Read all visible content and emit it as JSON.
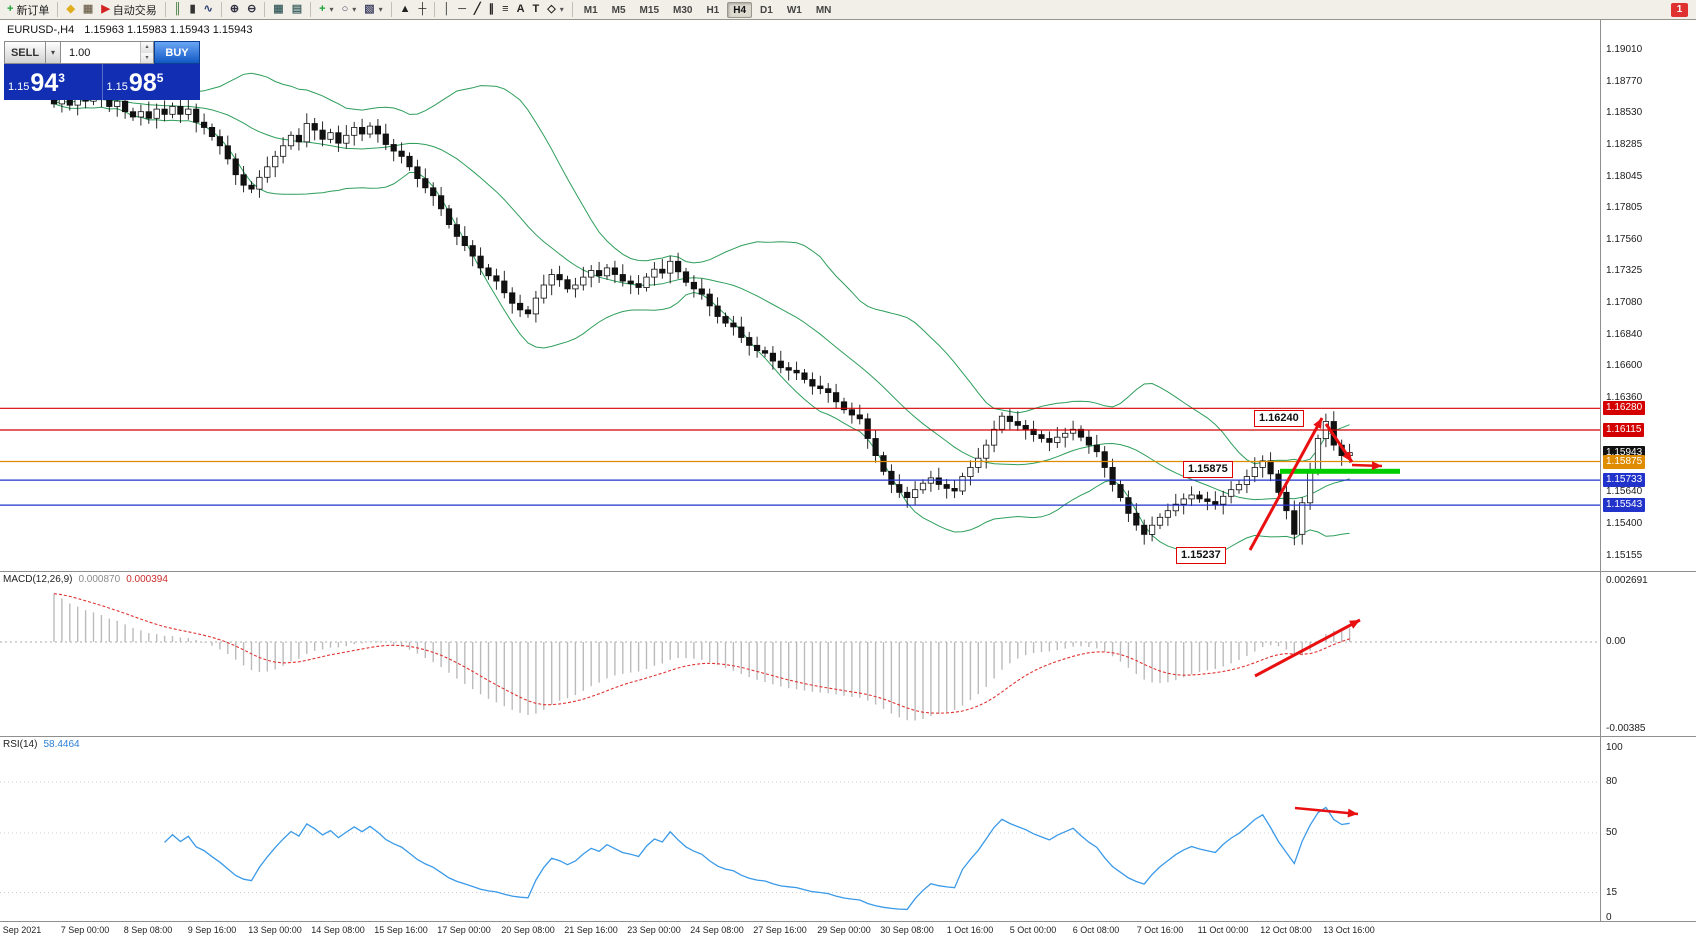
{
  "toolbar": {
    "groups": [
      {
        "items": [
          {
            "name": "new-order",
            "icon": "+",
            "color": "#18a035",
            "label": "新订单"
          }
        ]
      },
      {
        "items": [
          {
            "name": "deposit",
            "icon": "◆",
            "color": "#dfae1f"
          },
          {
            "name": "profiles",
            "icon": "▦",
            "color": "#7a6f5a"
          },
          {
            "name": "autotrading",
            "icon": "▶",
            "color": "#d22222",
            "label": "自动交易"
          }
        ]
      },
      {
        "items": [
          {
            "name": "bar-chart",
            "icon": "║",
            "color": "#2f6e2f"
          },
          {
            "name": "candlestick-chart",
            "icon": "▮",
            "color": "#333333"
          },
          {
            "name": "line-chart",
            "icon": "∿",
            "color": "#334477"
          }
        ]
      },
      {
        "items": [
          {
            "name": "zoom-in",
            "icon": "⊕",
            "color": "#333344"
          },
          {
            "name": "zoom-out",
            "icon": "⊖",
            "color": "#333344"
          }
        ]
      },
      {
        "items": [
          {
            "name": "tile-windows",
            "icon": "▦",
            "color": "#446666"
          },
          {
            "name": "auto-arrange",
            "icon": "▤",
            "color": "#446666"
          }
        ]
      },
      {
        "items": [
          {
            "name": "add-indicator",
            "icon": "+",
            "color": "#18a035",
            "dropdown": true
          },
          {
            "name": "period-menu",
            "icon": "○",
            "color": "#444466",
            "dropdown": true
          },
          {
            "name": "template-menu",
            "icon": "▧",
            "color": "#444466",
            "dropdown": true
          }
        ]
      },
      {
        "items": [
          {
            "name": "cursor-tool",
            "icon": "▲",
            "color": "#222222"
          },
          {
            "name": "crosshair-tool",
            "icon": "┼",
            "color": "#222222"
          }
        ]
      },
      {
        "items": [
          {
            "name": "vertical-line-tool",
            "icon": "│",
            "color": "#222222"
          },
          {
            "name": "horizontal-line-tool",
            "icon": "─",
            "color": "#222222"
          },
          {
            "name": "trendline-tool",
            "icon": "╱",
            "color": "#222222"
          },
          {
            "name": "channel-tool",
            "icon": "∥",
            "color": "#222222"
          },
          {
            "name": "fibonacci-tool",
            "icon": "≡",
            "color": "#222222"
          },
          {
            "name": "text-tool",
            "icon": "A",
            "color": "#222222"
          },
          {
            "name": "label-tool",
            "icon": "T",
            "color": "#222222"
          },
          {
            "name": "shapes-tool",
            "icon": "◇",
            "color": "#222222",
            "dropdown": true
          }
        ]
      }
    ],
    "timeframes": [
      "M1",
      "M5",
      "M15",
      "M30",
      "H1",
      "H4",
      "D1",
      "W1",
      "MN"
    ],
    "active_timeframe": "H4",
    "notification_badge": "1"
  },
  "chart": {
    "symbol_period": "EURUSD-,H4",
    "ohlc": "1.15963 1.15983 1.15943 1.15943"
  },
  "trade_panel": {
    "sell_label": "SELL",
    "buy_label": "BUY",
    "volume": "1.00",
    "sell_price": {
      "prefix": "1.15",
      "big": "94",
      "sup": "3"
    },
    "buy_price": {
      "prefix": "1.15",
      "big": "98",
      "sup": "5"
    }
  },
  "annotations": {
    "high": "1.16240",
    "mid": "1.15875",
    "low": "1.15237"
  },
  "price_axis": {
    "gridline_labels": [
      "1.19010",
      "1.18770",
      "1.18530",
      "1.18285",
      "1.18045",
      "1.17805",
      "1.17560",
      "1.17325",
      "1.17080",
      "1.16840",
      "1.16600",
      "1.16360",
      "1.16115",
      "1.15875",
      "1.15640",
      "1.15400",
      "1.15155"
    ],
    "highlighted": [
      {
        "value": "1.16280",
        "bg": "#d40000"
      },
      {
        "value": "1.16115",
        "bg": "#d40000"
      },
      {
        "value": "1.15943",
        "bg": "#111111"
      },
      {
        "value": "1.15875",
        "bg": "#e08c00"
      },
      {
        "value": "1.15733",
        "bg": "#2233cc"
      },
      {
        "value": "1.15543",
        "bg": "#2233cc"
      }
    ]
  },
  "macd": {
    "name": "MACD(12,26,9)",
    "value_main": "0.000870",
    "value_signal": "0.000394",
    "axis_labels": [
      "0.002691",
      "0.00",
      "-0.00385"
    ],
    "axis_values": [
      0.002691,
      0,
      -0.00385
    ]
  },
  "rsi": {
    "name": "RSI(14)",
    "value": "58.4464",
    "axis_labels": [
      "100",
      "80",
      "50",
      "15",
      "0"
    ],
    "axis_values": [
      100,
      80,
      50,
      15,
      0
    ],
    "levels": [
      80,
      50,
      15
    ]
  },
  "time_axis": [
    "Sep 2021",
    "7 Sep 00:00",
    "8 Sep 08:00",
    "9 Sep 16:00",
    "13 Sep 00:00",
    "14 Sep 08:00",
    "15 Sep 16:00",
    "17 Sep 00:00",
    "20 Sep 08:00",
    "21 Sep 16:00",
    "23 Sep 00:00",
    "24 Sep 08:00",
    "27 Sep 16:00",
    "29 Sep 00:00",
    "30 Sep 08:00",
    "1 Oct 16:00",
    "5 Oct 00:00",
    "6 Oct 08:00",
    "7 Oct 16:00",
    "11 Oct 00:00",
    "12 Oct 08:00",
    "13 Oct 16:00"
  ],
  "colors": {
    "bollinger": "#2e9e5b",
    "bull": "#ffffff",
    "bear": "#111111",
    "macd_hist": "#bbbbbb",
    "macd_signal": "#e03333",
    "rsi_line": "#3b9ae8",
    "arrow": "#e81010",
    "support_zone": "#00ce00"
  },
  "chart_data": {
    "type": "candlestick",
    "symbol": "EURUSD-",
    "timeframe": "H4",
    "ylim": [
      1.15155,
      1.1901
    ],
    "hlines": [
      {
        "price": 1.1628,
        "color": "#d40000"
      },
      {
        "price": 1.16115,
        "color": "#d40000"
      },
      {
        "price": 1.15875,
        "color": "#e08c00"
      },
      {
        "price": 1.15733,
        "color": "#2233cc"
      },
      {
        "price": 1.15543,
        "color": "#2233cc"
      }
    ],
    "support_zone_price": 1.158,
    "key_points": {
      "swing_low_index": 157,
      "swing_low": 1.15237,
      "swing_high_index": 161,
      "swing_high": 1.1624,
      "current_bid": 1.15943,
      "current_ask": 1.15985
    },
    "bollinger": {
      "period": 20,
      "deviation": 2
    },
    "closes": [
      1.186,
      1.1864,
      1.1859,
      1.1866,
      1.1862,
      1.1868,
      1.1864,
      1.1858,
      1.1862,
      1.1854,
      1.185,
      1.1854,
      1.1849,
      1.1856,
      1.1852,
      1.1858,
      1.1852,
      1.1856,
      1.1846,
      1.1842,
      1.1835,
      1.1828,
      1.1818,
      1.1806,
      1.1798,
      1.1795,
      1.1804,
      1.1812,
      1.182,
      1.1828,
      1.1836,
      1.1831,
      1.1845,
      1.184,
      1.1833,
      1.1838,
      1.183,
      1.1836,
      1.1842,
      1.1837,
      1.1843,
      1.1837,
      1.1829,
      1.1824,
      1.182,
      1.1812,
      1.1803,
      1.1796,
      1.179,
      1.178,
      1.1768,
      1.1759,
      1.1752,
      1.1744,
      1.1735,
      1.1729,
      1.1725,
      1.1716,
      1.1708,
      1.1703,
      1.17,
      1.1712,
      1.1722,
      1.173,
      1.1726,
      1.1719,
      1.1722,
      1.1728,
      1.1733,
      1.1729,
      1.1735,
      1.173,
      1.1725,
      1.1723,
      1.172,
      1.1728,
      1.1734,
      1.1731,
      1.174,
      1.1732,
      1.1724,
      1.1719,
      1.1715,
      1.1706,
      1.1698,
      1.1693,
      1.169,
      1.1682,
      1.1676,
      1.1672,
      1.167,
      1.1664,
      1.1659,
      1.1657,
      1.1655,
      1.165,
      1.1645,
      1.1643,
      1.164,
      1.1633,
      1.1627,
      1.1623,
      1.162,
      1.1605,
      1.1592,
      1.158,
      1.157,
      1.1564,
      1.156,
      1.1566,
      1.1571,
      1.1575,
      1.157,
      1.1567,
      1.1565,
      1.1576,
      1.1583,
      1.159,
      1.16,
      1.1612,
      1.1622,
      1.1618,
      1.1615,
      1.1612,
      1.1608,
      1.1605,
      1.1602,
      1.1606,
      1.1609,
      1.1612,
      1.1606,
      1.16,
      1.1595,
      1.1583,
      1.157,
      1.156,
      1.1548,
      1.1539,
      1.1532,
      1.1539,
      1.1545,
      1.155,
      1.1555,
      1.1559,
      1.1562,
      1.1559,
      1.1557,
      1.1555,
      1.1561,
      1.1566,
      1.157,
      1.1576,
      1.1583,
      1.1588,
      1.1578,
      1.1564,
      1.155,
      1.1532,
      1.1556,
      1.158,
      1.1605,
      1.1618,
      1.16,
      1.1592,
      1.15943
    ]
  }
}
